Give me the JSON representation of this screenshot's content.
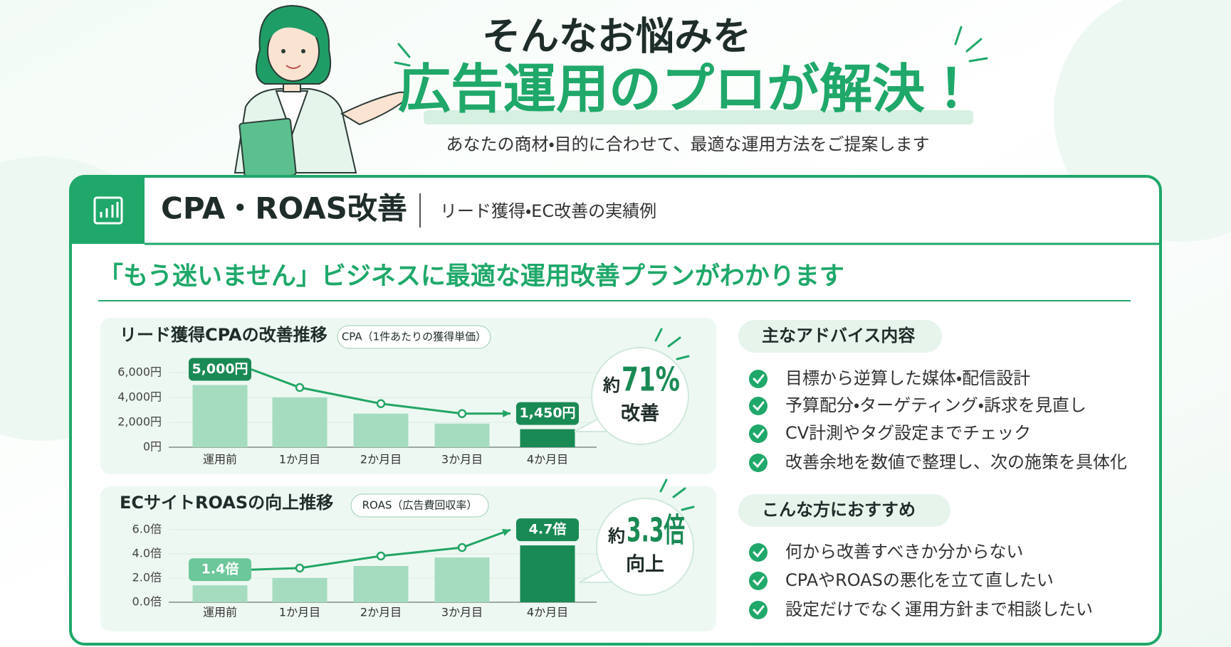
{
  "header": {
    "title_line1": "そんなお悩みを",
    "title_line2": "広告運用のプロが解決！",
    "subtitle": "あなたの商材・目的に合わせて、最適な運用方法をご提案します"
  },
  "card": {
    "title": "CPA・ROAS改善",
    "subtitle": "リード獲得・EC改善の実績例",
    "headline": "「もう迷いません」ビジネスに最適な運用改善プランがわかります"
  },
  "chart_data": [
    {
      "type": "bar",
      "title": "リード獲得CPAの改善推移",
      "subtitle": "CPA（1件あたりの獲得単価）",
      "categories": [
        "運用前",
        "1か月目",
        "2か月目",
        "3か月目",
        "4か月目"
      ],
      "values": [
        5000,
        4000,
        2700,
        1900,
        1450
      ],
      "value_labels": [
        "5,000円",
        null,
        null,
        null,
        "1,450円"
      ],
      "value_label_colors": [
        "#1a8a55",
        null,
        null,
        null,
        "#1a8a55"
      ],
      "colors": [
        "#a5dcbf",
        "#a5dcbf",
        "#a5dcbf",
        "#a5dcbf",
        "#1a8a55"
      ],
      "trend_color": "#22a565",
      "ylim": [
        0,
        6000
      ],
      "yticks": [
        {
          "value": 0,
          "label": "0円"
        },
        {
          "value": 2000,
          "label": "2,000円"
        },
        {
          "value": 4000,
          "label": "4,000円"
        },
        {
          "value": 6000,
          "label": "6,000円"
        }
      ],
      "annotation": {
        "prefix": "約",
        "value": "71%",
        "suffix": "改善"
      }
    },
    {
      "type": "bar",
      "title": "ECサイトROASの向上推移",
      "subtitle": "ROAS（広告費回収率）",
      "categories": [
        "運用前",
        "1か月目",
        "2か月目",
        "3か月目",
        "4か月目"
      ],
      "values": [
        1.4,
        2.0,
        3.0,
        3.7,
        4.7
      ],
      "value_labels": [
        "1.4倍",
        null,
        null,
        null,
        "4.7倍"
      ],
      "value_label_colors": [
        "#6cc79a",
        null,
        null,
        null,
        "#1a8a55"
      ],
      "colors": [
        "#a5dcbf",
        "#a5dcbf",
        "#a5dcbf",
        "#a5dcbf",
        "#1a8a55"
      ],
      "trend_color": "#22a565",
      "ylim": [
        0,
        6
      ],
      "yticks": [
        {
          "value": 0,
          "label": "0.0倍"
        },
        {
          "value": 2,
          "label": "2.0倍"
        },
        {
          "value": 4,
          "label": "4.0倍"
        },
        {
          "value": 6,
          "label": "6.0倍"
        }
      ],
      "annotation": {
        "prefix": "約",
        "value": "3.3倍",
        "suffix": "向上"
      }
    }
  ],
  "advice": {
    "title": "主なアドバイス内容",
    "items": [
      "目標から逆算した媒体・配信設計",
      "予算配分・ターゲティング・訴求を見直し",
      "CV計測やタグ設定までチェック",
      "改善余地を数値で整理し、次の施策を具体化"
    ]
  },
  "recommend": {
    "title": "こんな方におすすめ",
    "items": [
      "何から改善すべきか分からない",
      "CPAやROASの悪化を立て直したい",
      "設定だけでなく運用方針まで相談したい"
    ]
  }
}
